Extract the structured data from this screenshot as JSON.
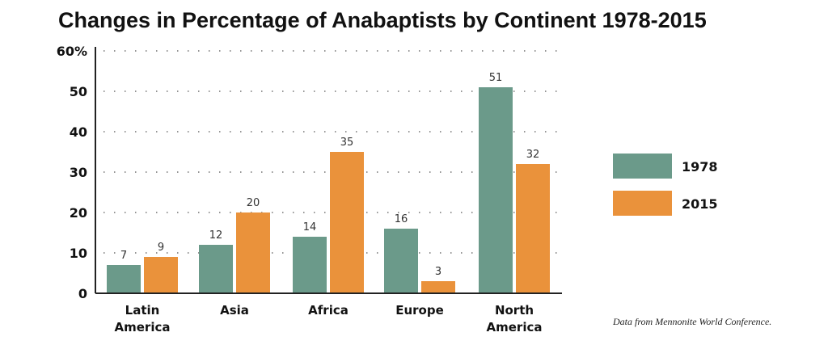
{
  "chart_data": {
    "type": "bar",
    "title": "Changes in Percentage of Anabaptists by Continent 1978-2015",
    "categories": [
      [
        "Latin",
        "America"
      ],
      [
        "Asia"
      ],
      [
        "Africa"
      ],
      [
        "Europe"
      ],
      [
        "North",
        "America"
      ]
    ],
    "series": [
      {
        "name": "1978",
        "color": "#6b9a8a",
        "values": [
          7,
          12,
          14,
          16,
          51
        ]
      },
      {
        "name": "2015",
        "color": "#ea923b",
        "values": [
          9,
          20,
          35,
          3,
          32
        ]
      }
    ],
    "ylim": [
      0,
      60
    ],
    "yticks": [
      "0",
      "10",
      "20",
      "30",
      "40",
      "50",
      "60%"
    ],
    "grid": "dotted horizontal",
    "legend": "right",
    "source": "Data from Mennonite World Conference."
  }
}
